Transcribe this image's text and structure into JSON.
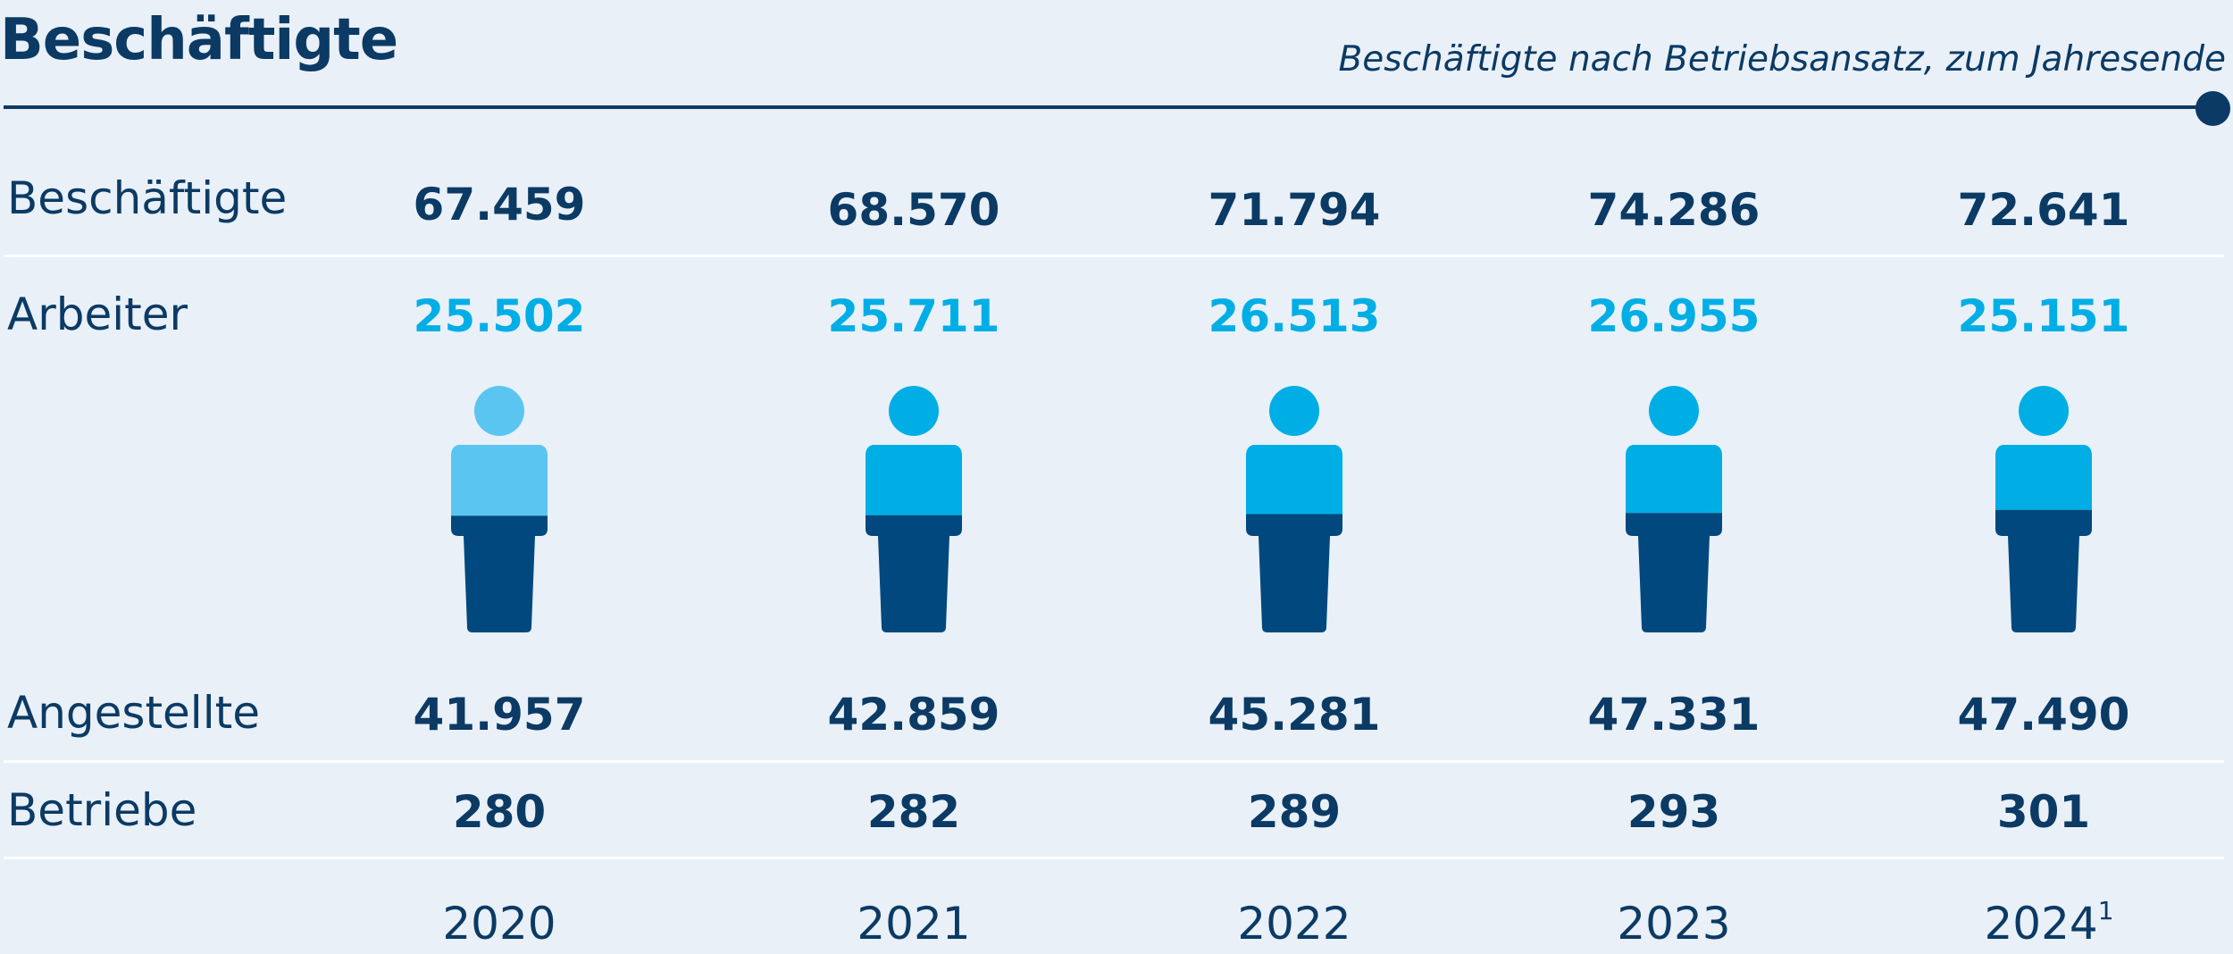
{
  "header": {
    "title": "Beschäftigte",
    "subtitle": "Beschäftigte nach Betriebsansatz, zum Jahresende"
  },
  "chart_data": {
    "type": "table",
    "title": "Beschäftigte",
    "subtitle": "Beschäftigte nach Betriebsansatz, zum Jahresende",
    "categories": [
      "2020",
      "2021",
      "2022",
      "2023",
      "2024"
    ],
    "category_labels": [
      {
        "text": "2020",
        "note": ""
      },
      {
        "text": "2021",
        "note": ""
      },
      {
        "text": "2022",
        "note": ""
      },
      {
        "text": "2023",
        "note": ""
      },
      {
        "text": "2024",
        "note": "1"
      }
    ],
    "row_labels": {
      "total": "Beschäftigte",
      "workers": "Arbeiter",
      "employees": "Angestellte",
      "plants": "Betriebe"
    },
    "series": [
      {
        "name": "Beschäftigte",
        "values": [
          67459,
          68570,
          71794,
          74286,
          72641
        ]
      },
      {
        "name": "Arbeiter",
        "values": [
          25502,
          25711,
          26513,
          26955,
          25151
        ]
      },
      {
        "name": "Angestellte",
        "values": [
          41957,
          42859,
          45281,
          47331,
          47490
        ]
      },
      {
        "name": "Betriebe",
        "values": [
          280,
          282,
          289,
          293,
          301
        ]
      }
    ],
    "display": {
      "total": [
        "67.459",
        "68.570",
        "71.794",
        "74.286",
        "72.641"
      ],
      "workers": [
        "25.502",
        "25.711",
        "26.513",
        "26.955",
        "25.151"
      ],
      "employees": [
        "41.957",
        "42.859",
        "45.281",
        "47.331",
        "47.490"
      ],
      "plants": [
        "280",
        "282",
        "289",
        "293",
        "301"
      ]
    },
    "colors": {
      "dark_blue": "#0b3a64",
      "light_blue": "#00aee6",
      "first_year_light": "#5bc5f2",
      "figure_dark": "#00487d",
      "background": "#e9f0f7"
    },
    "icon": "person-icon"
  }
}
